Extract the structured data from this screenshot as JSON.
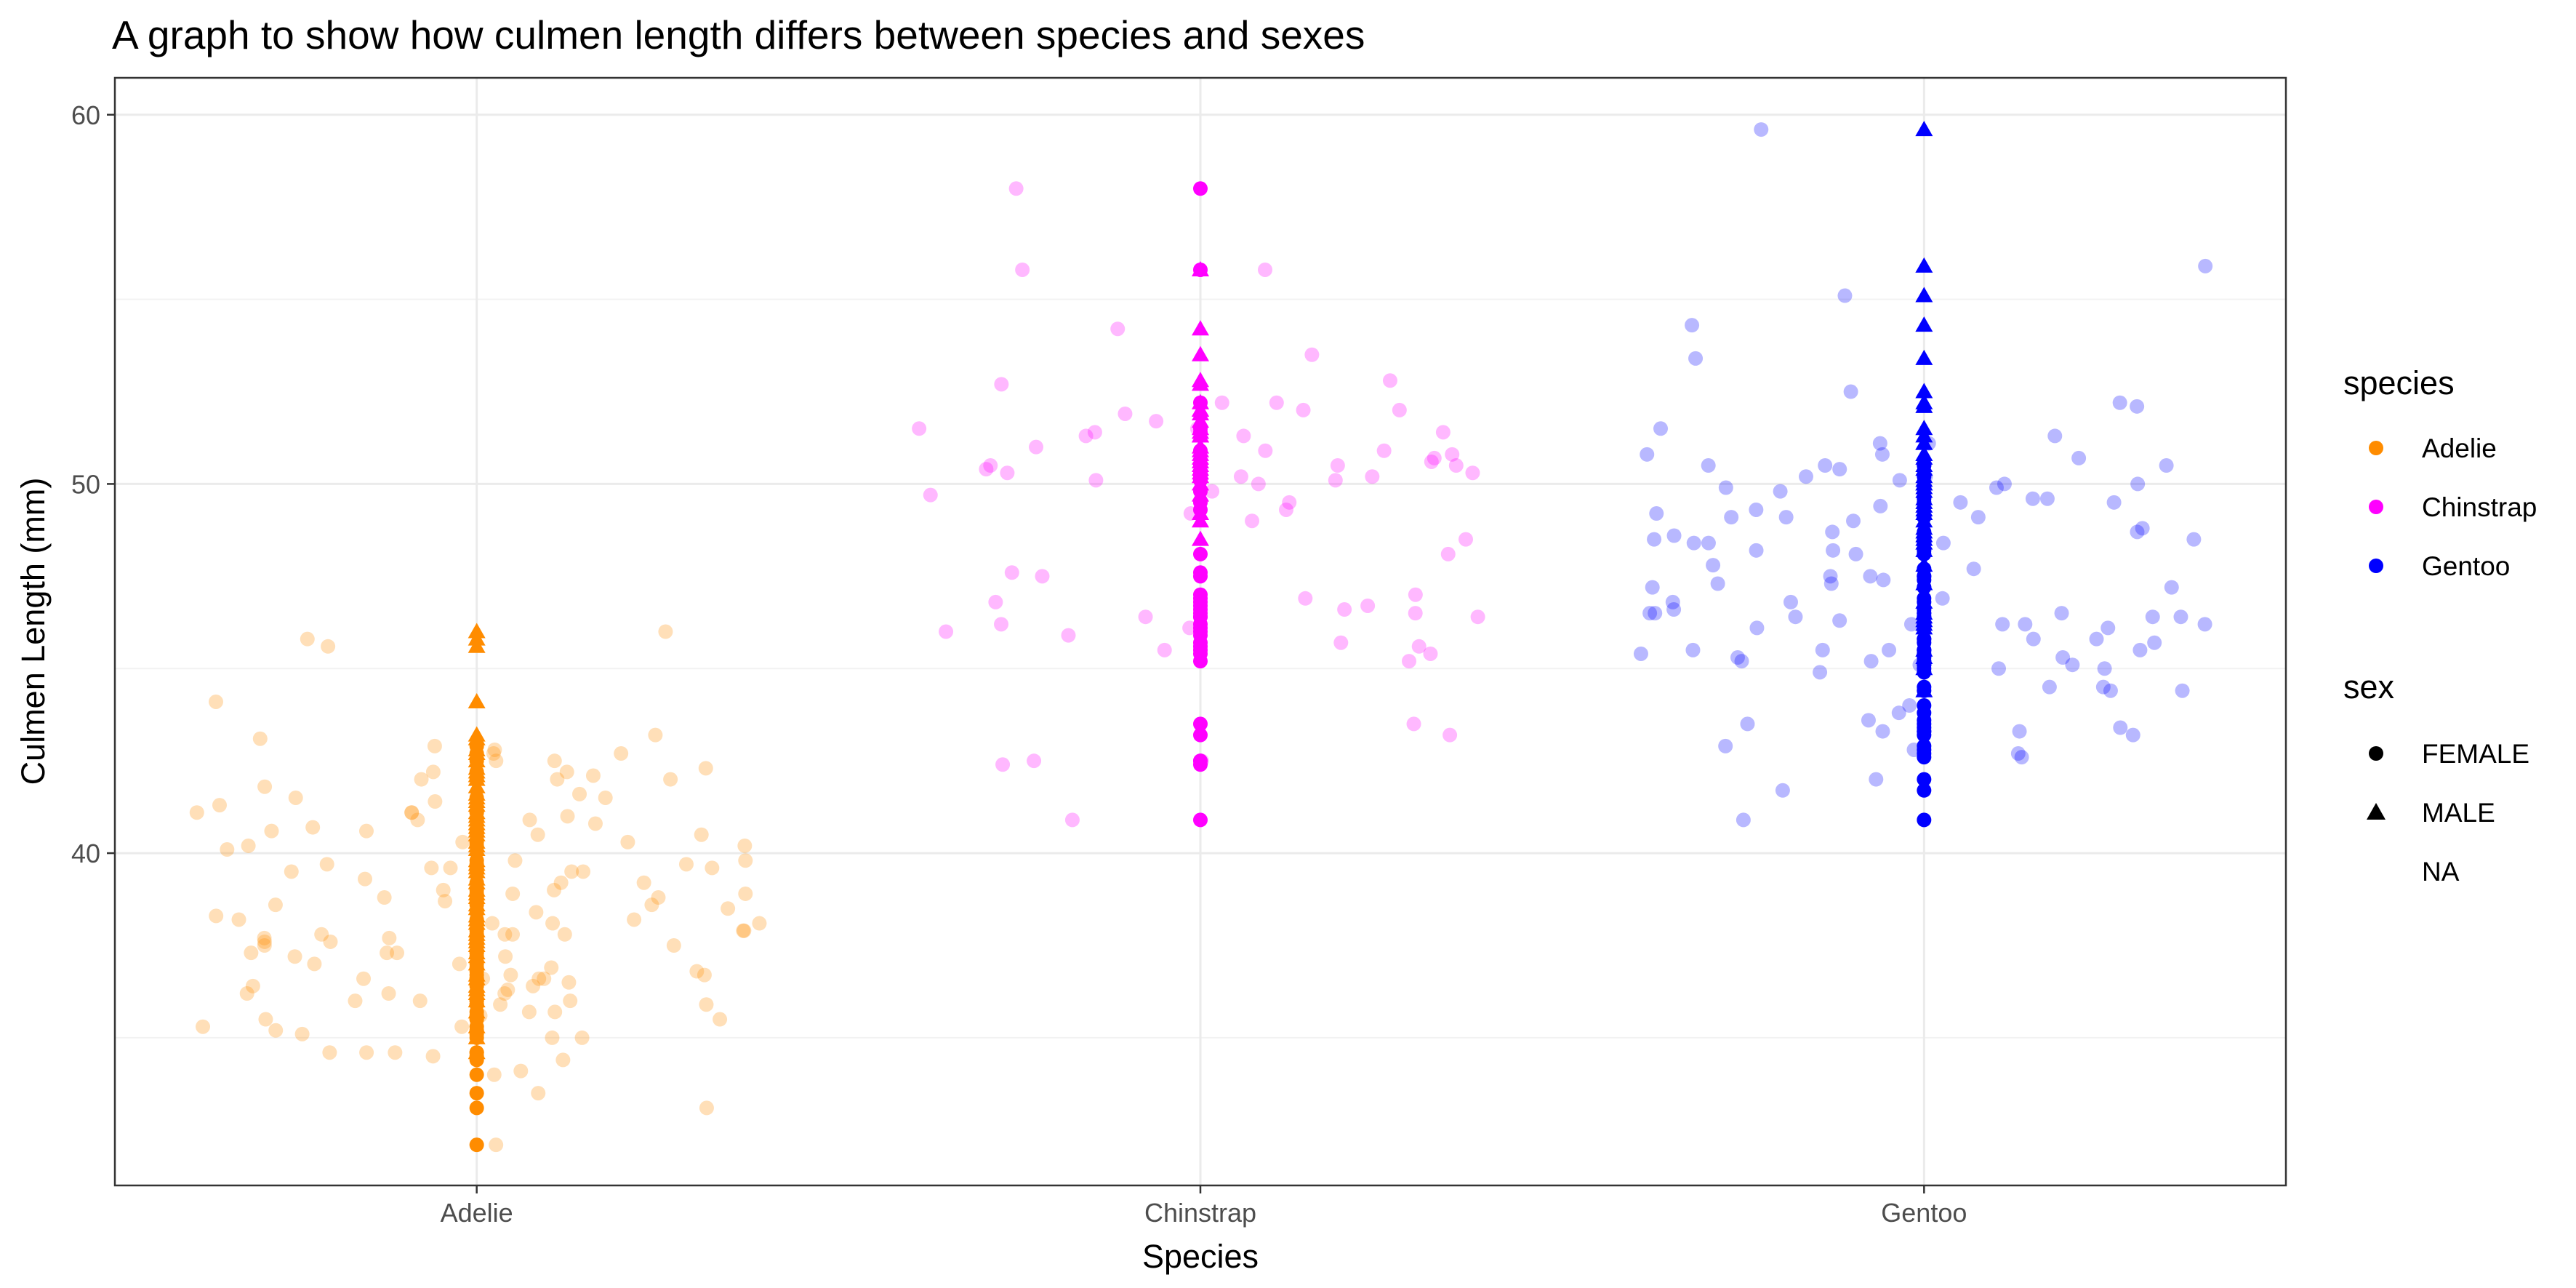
{
  "chart_data": {
    "type": "scatter",
    "title": "A graph to show how culmen length differs between species and sexes",
    "xlabel": "Species",
    "ylabel": "Culmen Length (mm)",
    "categories": [
      "Adelie",
      "Chinstrap",
      "Gentoo"
    ],
    "ylim": [
      31,
      61
    ],
    "yticks": [
      40,
      50,
      60
    ],
    "grid": true,
    "legend_position": "right",
    "colors": {
      "Adelie": "#ff8c00",
      "Chinstrap": "#ff00ff",
      "Gentoo": "#0000ff"
    },
    "legend": {
      "species": {
        "title": "species",
        "items": [
          "Adelie",
          "Chinstrap",
          "Gentoo"
        ]
      },
      "sex": {
        "title": "sex",
        "items": [
          {
            "label": "FEMALE",
            "shape": "circle"
          },
          {
            "label": "MALE",
            "shape": "triangle"
          },
          {
            "label": "NA",
            "shape": "none"
          }
        ]
      }
    },
    "series": [
      {
        "name": "Adelie",
        "female": [
          32.1,
          33.1,
          33.5,
          34.0,
          34.4,
          34.5,
          34.6,
          34.6,
          35.0,
          35.1,
          35.2,
          35.3,
          35.5,
          35.5,
          35.6,
          35.7,
          35.9,
          35.9,
          36.0,
          36.0,
          36.2,
          36.2,
          36.4,
          36.5,
          36.6,
          36.6,
          36.7,
          36.8,
          36.9,
          37.0,
          37.2,
          37.3,
          37.3,
          37.5,
          37.6,
          37.7,
          37.8,
          37.9,
          38.1,
          38.1,
          38.2,
          38.4,
          38.6,
          38.7,
          38.8,
          38.9,
          39.0,
          39.2,
          39.5,
          39.5,
          39.6,
          39.6,
          39.7,
          39.8,
          40.2,
          40.3,
          40.5,
          40.6,
          40.9,
          41.1,
          41.1,
          41.5,
          42.0,
          42.2,
          42.5,
          42.7,
          42.9
        ],
        "male": [
          34.6,
          35.0,
          35.3,
          35.7,
          36.0,
          36.2,
          36.3,
          36.4,
          36.6,
          36.7,
          37.0,
          37.2,
          37.3,
          37.5,
          37.6,
          37.7,
          37.8,
          37.9,
          38.1,
          38.2,
          38.3,
          38.5,
          38.6,
          38.8,
          38.9,
          39.0,
          39.2,
          39.3,
          39.5,
          39.6,
          39.7,
          39.8,
          40.1,
          40.2,
          40.3,
          40.5,
          40.6,
          40.7,
          40.8,
          40.9,
          41.0,
          41.1,
          41.3,
          41.4,
          41.5,
          41.6,
          41.8,
          42.0,
          42.1,
          42.2,
          42.3,
          42.5,
          42.7,
          42.8,
          43.1,
          43.2,
          44.1,
          45.6,
          45.8,
          46.0
        ],
        "na": [
          34.1,
          36.6,
          37.8,
          37.8,
          42.0
        ]
      },
      {
        "name": "Chinstrap",
        "female": [
          40.9,
          42.4,
          42.5,
          42.5,
          43.2,
          43.5,
          45.2,
          45.4,
          45.5,
          45.6,
          45.7,
          45.9,
          46.0,
          46.1,
          46.2,
          46.4,
          46.4,
          46.5,
          46.6,
          46.7,
          46.8,
          46.9,
          47.0,
          47.5,
          47.6,
          48.1,
          49.3,
          49.5,
          49.8,
          50.1,
          50.1,
          50.2,
          50.3,
          50.5,
          50.5,
          50.9,
          51.4,
          51.5,
          52.2,
          55.8,
          58.0
        ],
        "male": [
          48.5,
          49.0,
          49.2,
          49.7,
          50.0,
          50.2,
          50.3,
          50.4,
          50.5,
          50.6,
          50.7,
          50.8,
          50.9,
          51.0,
          51.3,
          51.3,
          51.4,
          51.5,
          51.7,
          51.9,
          52.0,
          52.0,
          52.2,
          52.7,
          52.8,
          53.5,
          54.2,
          55.8
        ],
        "na": []
      },
      {
        "name": "Gentoo",
        "female": [
          40.9,
          41.7,
          42.0,
          42.6,
          42.7,
          42.8,
          42.9,
          43.2,
          43.3,
          43.3,
          43.4,
          43.5,
          43.6,
          43.8,
          44.0,
          44.4,
          44.5,
          44.9,
          45.0,
          45.1,
          45.1,
          45.2,
          45.2,
          45.3,
          45.4,
          45.5,
          45.5,
          45.5,
          45.7,
          45.8,
          45.8,
          46.1,
          46.2,
          46.2,
          46.4,
          46.4,
          46.5,
          46.5,
          46.6,
          46.8,
          46.9,
          47.2,
          47.2,
          47.4,
          47.5,
          47.5,
          47.7,
          48.1,
          48.2,
          48.4,
          48.4,
          48.5,
          48.7,
          49.1,
          49.1,
          49.1,
          49.5,
          49.6,
          49.9,
          50.2,
          50.5,
          50.5
        ],
        "male": [
          44.4,
          45.0,
          45.3,
          45.5,
          46.1,
          46.2,
          46.3,
          46.4,
          46.5,
          46.8,
          47.3,
          47.8,
          48.2,
          48.4,
          48.5,
          48.6,
          48.7,
          48.8,
          49.0,
          49.2,
          49.3,
          49.4,
          49.5,
          49.6,
          49.8,
          49.9,
          50.0,
          50.0,
          50.1,
          50.2,
          50.4,
          50.5,
          50.7,
          50.8,
          50.8,
          51.1,
          51.1,
          51.3,
          51.5,
          52.1,
          52.2,
          52.5,
          53.4,
          54.3,
          55.1,
          55.9,
          59.6
        ],
        "na": [
          44.5,
          46.2,
          47.3
        ]
      }
    ]
  }
}
